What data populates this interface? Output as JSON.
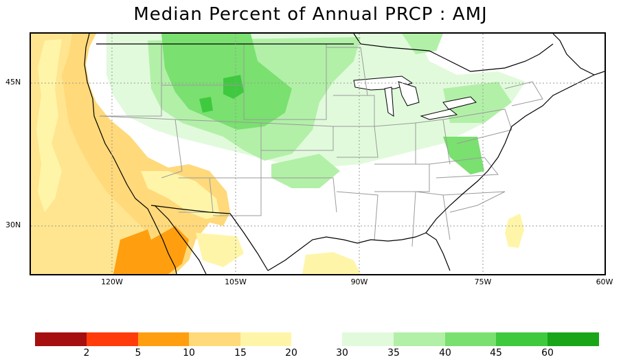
{
  "title": "Median Percent of Annual PRCP  :  AMJ",
  "axes": {
    "lat_labels": [
      "45N",
      "30N"
    ],
    "lon_labels": [
      "120W",
      "105W",
      "90W",
      "75W",
      "60W"
    ]
  },
  "legend": {
    "colors_dry": [
      "#a50f0f",
      "#ff3c0a",
      "#ff9f0f",
      "#ffd97a",
      "#fff5a8"
    ],
    "colors_wet": [
      "#e1fadc",
      "#b2f0a8",
      "#7ae070",
      "#3fc93f",
      "#18a518"
    ],
    "labels": [
      "2",
      "5",
      "10",
      "15",
      "20",
      "30",
      "35",
      "40",
      "45",
      "60"
    ]
  },
  "map_colors": {
    "ocean": "#ffffff",
    "land_neutral": "#ffffff",
    "coastline": "#000000",
    "state_lines": "#9a9a9a",
    "grid": "#999999"
  }
}
